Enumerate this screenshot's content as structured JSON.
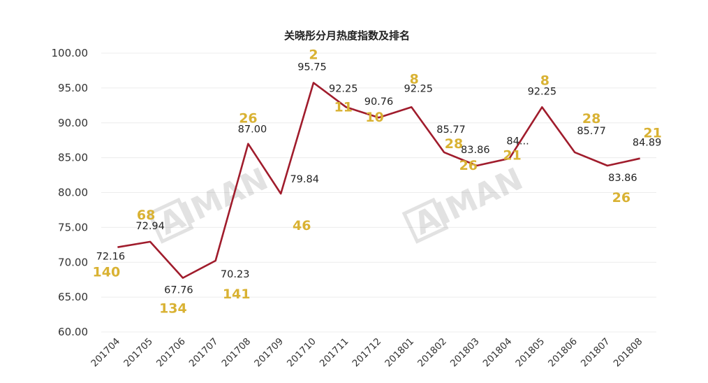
{
  "chart_data": {
    "type": "line",
    "title": "关晓彤分月热度指数及排名",
    "categories": [
      "201704",
      "201705",
      "201706",
      "201707",
      "201708",
      "201709",
      "201710",
      "201711",
      "201712",
      "201801",
      "201802",
      "201803",
      "201804",
      "201805",
      "201806",
      "201807",
      "201808"
    ],
    "series": [
      {
        "values": [
          72.16,
          72.94,
          67.76,
          70.23,
          87.0,
          79.84,
          95.75,
          92.25,
          90.76,
          92.25,
          85.77,
          83.86,
          84.89,
          92.25,
          85.77,
          83.86,
          84.89
        ]
      }
    ],
    "value_labels": [
      "72.16",
      "72.94",
      "67.76",
      "70.23",
      "87.00",
      "79.84",
      "95.75",
      "92.25",
      "90.76",
      "92.25",
      "85.77",
      "83.86",
      "84...",
      "92.25",
      "85.77",
      "83.86",
      "84.89"
    ],
    "rank_labels": [
      "140",
      "68",
      "134",
      "141",
      "26",
      "46",
      "2",
      "11",
      "10",
      "8",
      "28",
      "26",
      "21",
      "8",
      "28",
      "26",
      "21"
    ],
    "yticks": [
      "100.00",
      "95.00",
      "90.00",
      "85.00",
      "80.00",
      "75.00",
      "70.00",
      "65.00",
      "60.00"
    ],
    "ylim": [
      60,
      100
    ],
    "grid": true,
    "colors": {
      "line": "#a01c2c",
      "rank": "#d9b233",
      "grid": "#ececec"
    },
    "watermark": "AI MAN"
  }
}
